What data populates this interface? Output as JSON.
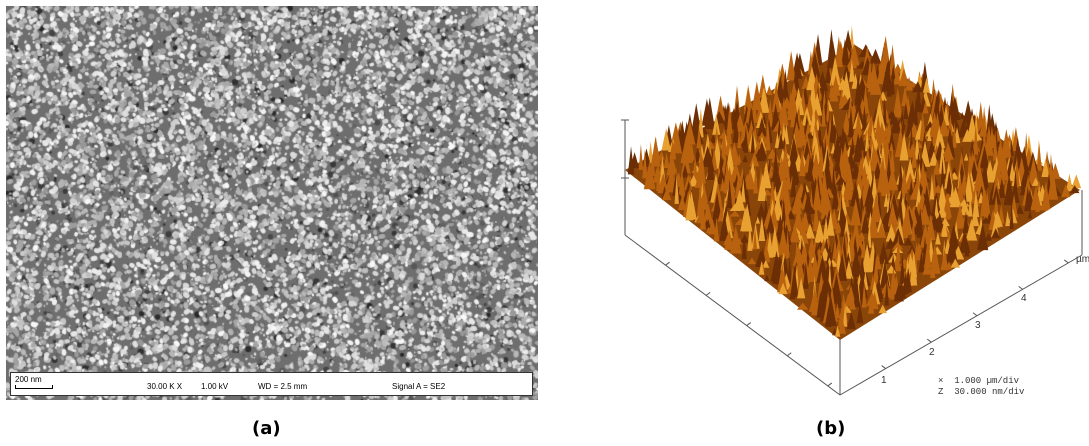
{
  "panel_a": {
    "caption": "(a)",
    "databar": {
      "scale_label": "200 nm",
      "magnification": "30.00 K X",
      "voltage": "1.00 kV",
      "working_distance": "WD =  2.5 mm",
      "signal": "Signal A = SE2"
    }
  },
  "panel_b": {
    "caption": "(b)",
    "axis_ticks": [
      "1",
      "2",
      "3",
      "4"
    ],
    "axis_unit": "µm",
    "legend_x": "×  1.000 µm/div",
    "legend_z": "Z  30.000 nm/div",
    "colors": {
      "surface_dark": "#6b2e05",
      "surface_mid": "#b8620f",
      "surface_light": "#e8a030"
    }
  }
}
